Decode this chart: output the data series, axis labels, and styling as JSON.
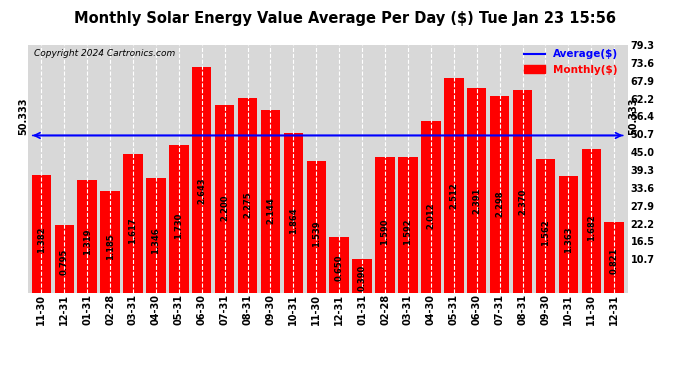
{
  "title": "Monthly Solar Energy Value Average Per Day ($) Tue Jan 23 15:56",
  "copyright": "Copyright 2024 Cartronics.com",
  "average_label": "50.333",
  "average_value": 1.84,
  "categories": [
    "11-30",
    "12-31",
    "01-31",
    "02-28",
    "03-31",
    "04-30",
    "05-31",
    "06-30",
    "07-31",
    "08-31",
    "09-30",
    "10-31",
    "11-30",
    "12-31",
    "01-31",
    "02-28",
    "03-31",
    "04-30",
    "05-31",
    "06-30",
    "07-31",
    "08-31",
    "09-30",
    "10-31",
    "11-30",
    "12-31"
  ],
  "values": [
    1.382,
    0.795,
    1.319,
    1.185,
    1.617,
    1.346,
    1.73,
    2.643,
    2.2,
    2.275,
    2.144,
    1.864,
    1.539,
    0.65,
    0.39,
    1.59,
    1.592,
    2.012,
    2.512,
    2.391,
    2.298,
    2.37,
    1.562,
    1.363,
    1.682,
    0.821
  ],
  "bar_color": "#ff0000",
  "average_line_color": "#0000ff",
  "background_color": "#ffffff",
  "plot_bg_color": "#d8d8d8",
  "ylim_min": 0,
  "ylim_max": 2.9,
  "ytick_labels_right": [
    "10.7",
    "16.5",
    "22.2",
    "27.9",
    "33.6",
    "39.3",
    "45.0",
    "50.7",
    "56.4",
    "62.2",
    "67.9",
    "73.6",
    "79.3"
  ],
  "ytick_values_right": [
    0.39,
    0.6,
    0.81,
    1.02,
    1.23,
    1.44,
    1.65,
    1.86,
    2.07,
    2.28,
    2.49,
    2.7,
    2.91
  ],
  "legend_average": "Average($)",
  "legend_monthly": "Monthly($)",
  "title_fontsize": 10.5,
  "tick_fontsize": 7,
  "label_fontsize": 6.0,
  "copyright_fontsize": 6.5
}
